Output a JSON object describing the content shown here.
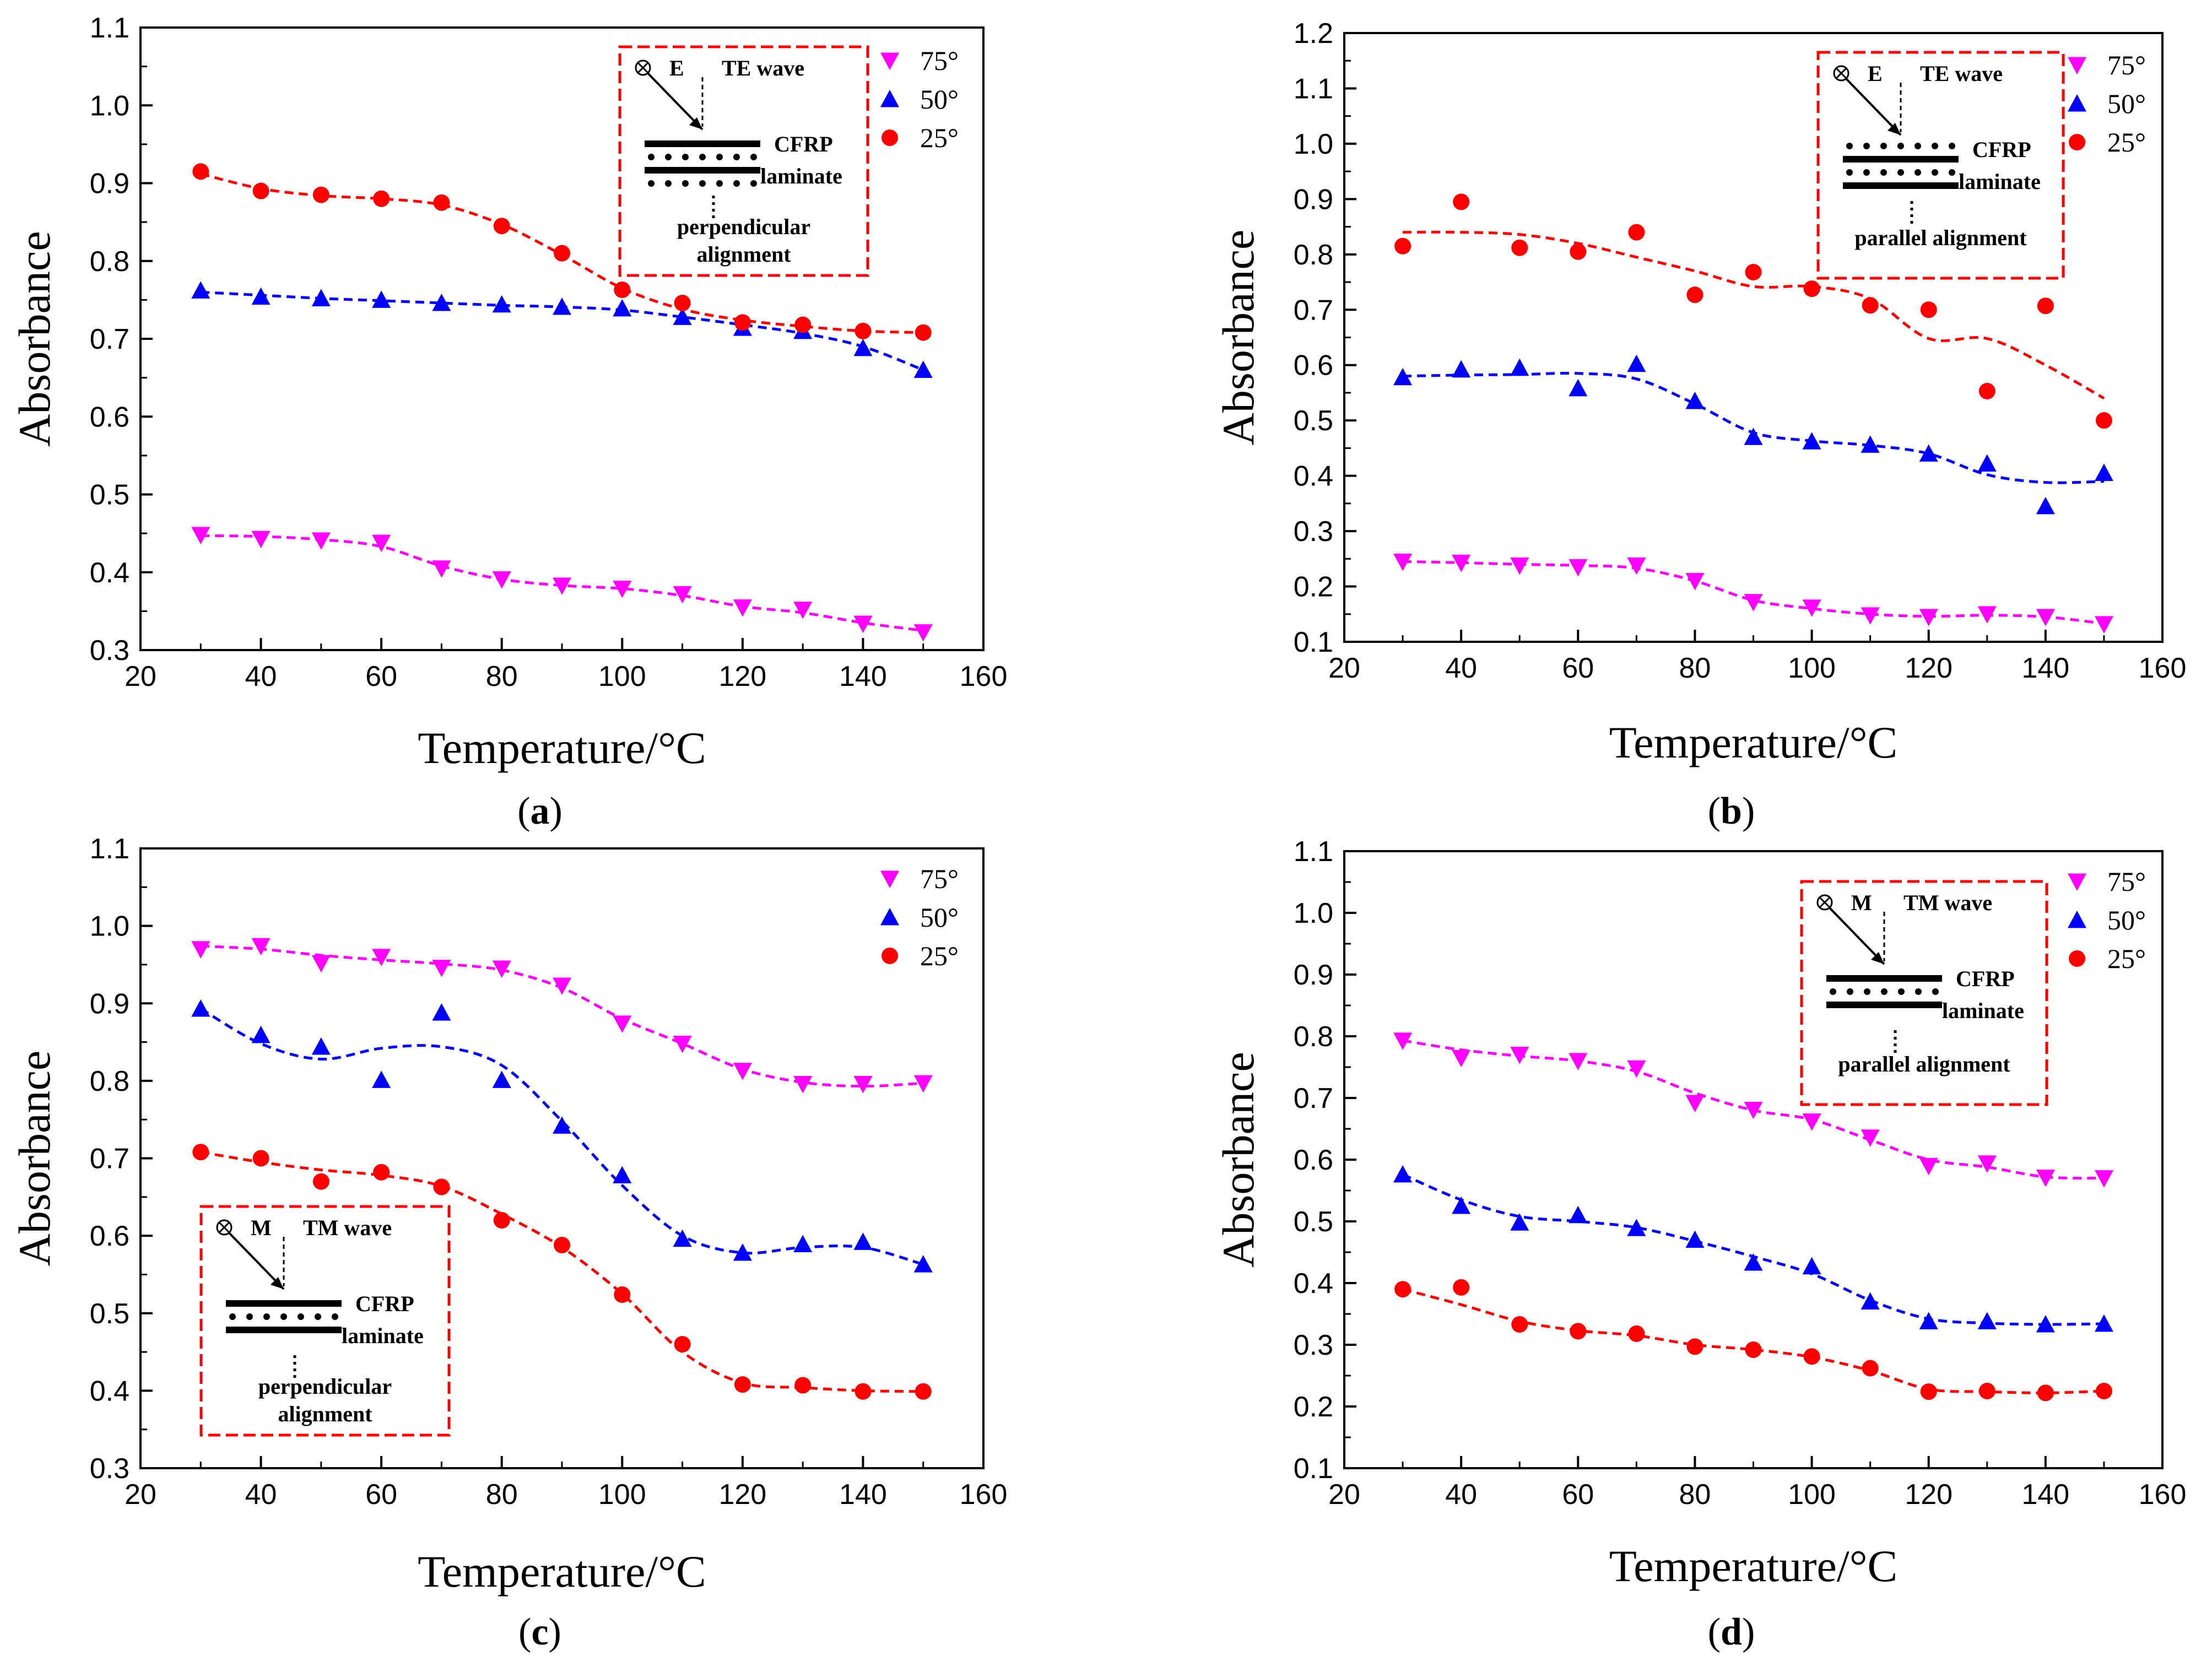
{
  "figure": {
    "marker_colors": {
      "75": "#ff00ff",
      "50": "#0000ff",
      "25": "#ff0000"
    },
    "inset_border_color": "#ff0000"
  },
  "chart_data": [
    {
      "type": "scatter",
      "panel_label": "a",
      "xlabel": "Temperature/°C",
      "ylabel": "Absorbance",
      "xlim": [
        20,
        160
      ],
      "ylim": [
        0.3,
        1.1
      ],
      "xticks": [
        20,
        40,
        60,
        80,
        100,
        120,
        140,
        160
      ],
      "yticks": [
        0.3,
        0.4,
        0.5,
        0.6,
        0.7,
        0.8,
        0.9,
        1.0,
        1.1
      ],
      "x": [
        30,
        40,
        50,
        60,
        70,
        80,
        90,
        100,
        110,
        120,
        130,
        140,
        150
      ],
      "series": [
        {
          "name": "75°",
          "marker": "triangle-down",
          "color": "#ff00ff",
          "values": [
            0.448,
            0.443,
            0.441,
            0.438,
            0.405,
            0.391,
            0.383,
            0.379,
            0.372,
            0.355,
            0.352,
            0.334,
            0.323
          ],
          "fit": [
            0.447,
            0.446,
            0.442,
            0.433,
            0.408,
            0.391,
            0.383,
            0.379,
            0.37,
            0.356,
            0.348,
            0.335,
            0.325
          ]
        },
        {
          "name": "50°",
          "marker": "triangle-up",
          "color": "#0000ff",
          "values": [
            0.762,
            0.754,
            0.752,
            0.75,
            0.746,
            0.744,
            0.741,
            0.739,
            0.728,
            0.714,
            0.71,
            0.688,
            0.66
          ],
          "fit": [
            0.76,
            0.756,
            0.752,
            0.749,
            0.746,
            0.743,
            0.741,
            0.737,
            0.728,
            0.718,
            0.707,
            0.69,
            0.66
          ]
        },
        {
          "name": "25°",
          "marker": "circle",
          "color": "#ff0000",
          "values": [
            0.915,
            0.89,
            0.885,
            0.88,
            0.875,
            0.845,
            0.81,
            0.763,
            0.746,
            0.721,
            0.718,
            0.71,
            0.708
          ],
          "fit": [
            0.912,
            0.893,
            0.884,
            0.88,
            0.872,
            0.847,
            0.808,
            0.765,
            0.738,
            0.724,
            0.716,
            0.71,
            0.708
          ]
        }
      ],
      "legend_position": "top-right",
      "inset": {
        "field": "E",
        "wave": "TE wave",
        "label1": "CFRP",
        "label2": "laminate",
        "align1": "perpendicular",
        "align2": "alignment",
        "dots": "below",
        "corner": "top-right"
      }
    },
    {
      "type": "scatter",
      "panel_label": "b",
      "xlabel": "Temperature/°C",
      "ylabel": "Absorbance",
      "xlim": [
        20,
        160
      ],
      "ylim": [
        0.1,
        1.2
      ],
      "xticks": [
        20,
        40,
        60,
        80,
        100,
        120,
        140,
        160
      ],
      "yticks": [
        0.1,
        0.2,
        0.3,
        0.4,
        0.5,
        0.6,
        0.7,
        0.8,
        0.9,
        1.0,
        1.1,
        1.2
      ],
      "x": [
        30,
        40,
        50,
        60,
        70,
        80,
        90,
        100,
        110,
        120,
        130,
        140,
        150
      ],
      "series": [
        {
          "name": "75°",
          "marker": "triangle-down",
          "color": "#ff00ff",
          "values": [
            0.245,
            0.243,
            0.238,
            0.235,
            0.238,
            0.21,
            0.172,
            0.162,
            0.148,
            0.145,
            0.15,
            0.145,
            0.132
          ],
          "fit": [
            0.245,
            0.243,
            0.24,
            0.238,
            0.233,
            0.21,
            0.175,
            0.16,
            0.15,
            0.146,
            0.148,
            0.145,
            0.133
          ]
        },
        {
          "name": "50°",
          "marker": "triangle-up",
          "color": "#0000ff",
          "values": [
            0.578,
            0.592,
            0.595,
            0.558,
            0.602,
            0.535,
            0.47,
            0.462,
            0.456,
            0.44,
            0.422,
            0.345,
            0.405
          ],
          "fit": [
            0.58,
            0.582,
            0.583,
            0.585,
            0.575,
            0.53,
            0.478,
            0.463,
            0.455,
            0.44,
            0.402,
            0.388,
            0.39
          ]
        },
        {
          "name": "25°",
          "marker": "circle",
          "color": "#ff0000",
          "values": [
            0.815,
            0.895,
            0.812,
            0.805,
            0.84,
            0.727,
            0.768,
            0.738,
            0.708,
            0.7,
            0.553,
            0.707,
            0.5
          ],
          "fit": [
            0.84,
            0.84,
            0.836,
            0.82,
            0.795,
            0.77,
            0.742,
            0.742,
            0.72,
            0.648,
            0.648,
            0.6,
            0.54
          ]
        }
      ],
      "legend_position": "top-right",
      "inset": {
        "field": "E",
        "wave": "TE wave",
        "label1": "CFRP",
        "label2": "laminate",
        "align1": "parallel alignment",
        "align2": "",
        "dots": "above",
        "corner": "top-right"
      }
    },
    {
      "type": "scatter",
      "panel_label": "c",
      "xlabel": "Temperature/°C",
      "ylabel": "Absorbance",
      "xlim": [
        20,
        160
      ],
      "ylim": [
        0.3,
        1.1
      ],
      "xticks": [
        20,
        40,
        60,
        80,
        100,
        120,
        140,
        160
      ],
      "yticks": [
        0.3,
        0.4,
        0.5,
        0.6,
        0.7,
        0.8,
        0.9,
        1.0,
        1.1
      ],
      "x": [
        30,
        40,
        50,
        60,
        70,
        80,
        90,
        100,
        110,
        120,
        130,
        140,
        150
      ],
      "series": [
        {
          "name": "75°",
          "marker": "triangle-down",
          "color": "#ff00ff",
          "values": [
            0.97,
            0.974,
            0.952,
            0.96,
            0.946,
            0.945,
            0.923,
            0.874,
            0.848,
            0.813,
            0.796,
            0.796,
            0.797
          ],
          "fit": [
            0.974,
            0.97,
            0.962,
            0.956,
            0.951,
            0.943,
            0.92,
            0.88,
            0.848,
            0.815,
            0.798,
            0.793,
            0.797
          ]
        },
        {
          "name": "50°",
          "marker": "triangle-up",
          "color": "#0000ff",
          "values": [
            0.893,
            0.859,
            0.844,
            0.801,
            0.888,
            0.801,
            0.742,
            0.678,
            0.596,
            0.578,
            0.589,
            0.592,
            0.563
          ],
          "fit": [
            0.893,
            0.848,
            0.828,
            0.842,
            0.844,
            0.82,
            0.748,
            0.665,
            0.6,
            0.578,
            0.585,
            0.585,
            0.563
          ]
        },
        {
          "name": "25°",
          "marker": "circle",
          "color": "#ff0000",
          "values": [
            0.708,
            0.7,
            0.67,
            0.682,
            0.663,
            0.62,
            0.588,
            0.524,
            0.46,
            0.408,
            0.407,
            0.399,
            0.399
          ],
          "fit": [
            0.708,
            0.695,
            0.685,
            0.678,
            0.664,
            0.628,
            0.585,
            0.525,
            0.45,
            0.41,
            0.404,
            0.4,
            0.399
          ]
        }
      ],
      "legend_position": "top-right",
      "inset": {
        "field": "M",
        "wave": "TM wave",
        "label1": "CFRP",
        "label2": "laminate",
        "align1": "perpendicular",
        "align2": "alignment",
        "dots": "middle",
        "corner": "bottom-left"
      }
    },
    {
      "type": "scatter",
      "panel_label": "d",
      "xlabel": "Temperature/°C",
      "ylabel": "Absorbance",
      "xlim": [
        20,
        160
      ],
      "ylim": [
        0.1,
        1.1
      ],
      "xticks": [
        20,
        40,
        60,
        80,
        100,
        120,
        140,
        160
      ],
      "yticks": [
        0.1,
        0.2,
        0.3,
        0.4,
        0.5,
        0.6,
        0.7,
        0.8,
        0.9,
        1.0,
        1.1
      ],
      "x": [
        30,
        40,
        50,
        60,
        70,
        80,
        90,
        100,
        110,
        120,
        130,
        140,
        150
      ],
      "series": [
        {
          "name": "75°",
          "marker": "triangle-down",
          "color": "#ff00ff",
          "values": [
            0.793,
            0.765,
            0.77,
            0.76,
            0.748,
            0.692,
            0.681,
            0.662,
            0.636,
            0.59,
            0.594,
            0.571,
            0.57
          ],
          "fit": [
            0.793,
            0.778,
            0.768,
            0.76,
            0.743,
            0.708,
            0.68,
            0.665,
            0.632,
            0.6,
            0.588,
            0.572,
            0.57
          ]
        },
        {
          "name": "50°",
          "marker": "triangle-up",
          "color": "#0000ff",
          "values": [
            0.576,
            0.525,
            0.498,
            0.51,
            0.489,
            0.47,
            0.433,
            0.427,
            0.37,
            0.338,
            0.338,
            0.333,
            0.334
          ],
          "fit": [
            0.576,
            0.535,
            0.508,
            0.5,
            0.49,
            0.468,
            0.443,
            0.415,
            0.372,
            0.342,
            0.335,
            0.333,
            0.334
          ]
        },
        {
          "name": "25°",
          "marker": "circle",
          "color": "#ff0000",
          "values": [
            0.39,
            0.393,
            0.333,
            0.322,
            0.318,
            0.297,
            0.292,
            0.281,
            0.262,
            0.224,
            0.225,
            0.222,
            0.225
          ],
          "fit": [
            0.39,
            0.365,
            0.338,
            0.323,
            0.315,
            0.3,
            0.292,
            0.28,
            0.258,
            0.228,
            0.224,
            0.222,
            0.225
          ]
        }
      ],
      "legend_position": "top-right",
      "inset": {
        "field": "M",
        "wave": "TM wave",
        "label1": "CFRP",
        "label2": "laminate",
        "align1": "parallel alignment",
        "align2": "",
        "dots": "middle",
        "corner": "top-right"
      }
    }
  ]
}
